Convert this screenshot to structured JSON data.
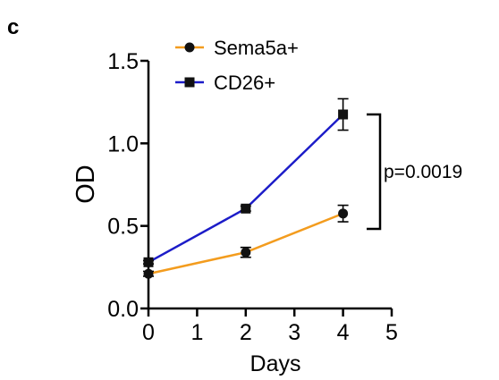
{
  "panel_label": "c",
  "chart_data": {
    "type": "line",
    "xlabel": "Days",
    "ylabel": "OD",
    "xlim": [
      0,
      5
    ],
    "ylim": [
      0,
      1.5
    ],
    "x_ticks": [
      "0",
      "1",
      "2",
      "3",
      "4",
      "5"
    ],
    "y_ticks": [
      "0.0",
      "0.5",
      "1.0",
      "1.5"
    ],
    "grid": false,
    "legend_position": "top",
    "series": [
      {
        "name": "Sema5a+",
        "color": "#F39C1E",
        "marker": "circle",
        "x": [
          0,
          2,
          4
        ],
        "y": [
          0.21,
          0.34,
          0.575
        ],
        "error": [
          0.015,
          0.03,
          0.05
        ]
      },
      {
        "name": "CD26+",
        "color": "#1C1CC8",
        "marker": "square",
        "x": [
          0,
          2,
          4
        ],
        "y": [
          0.28,
          0.605,
          1.175
        ],
        "error": [
          0.01,
          0.015,
          0.095
        ]
      }
    ],
    "annotation": "p=0.0019"
  }
}
